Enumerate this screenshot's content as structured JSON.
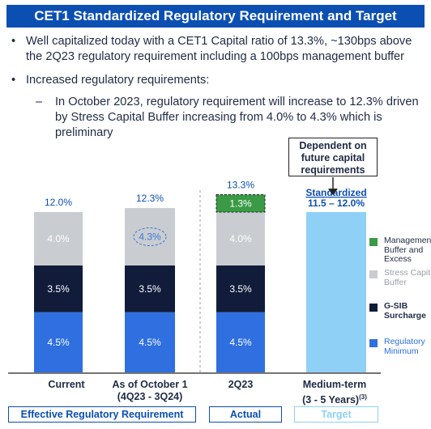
{
  "title": "CET1 Standardized Regulatory Requirement and Target",
  "bullets": {
    "b1": "Well capitalized today with a CET1 Capital ratio of 13.3%, ~130bps above the 2Q23 regulatory requirement including a 100bps management buffer",
    "b2": "Increased regulatory requirements:",
    "sub1": "In October 2023, regulatory requirement will increase to 12.3% driven by Stress Capital Buffer increasing from 4.0% to 4.3% which is preliminary"
  },
  "callout": "Dependent on future capital requirements",
  "colors": {
    "regulatory_minimum": "#2f6fe0",
    "gsib": "#101c3a",
    "stress_capital_buffer": "#c9ccd0",
    "management_buffer": "#3a9a45",
    "medium_term": "#8fd0f7",
    "label_blue": "#0b4fb3"
  },
  "chart_data": {
    "type": "bar",
    "stacked": true,
    "categories": [
      "Current",
      "As of October 1 (4Q23 - 3Q24)",
      "2Q23",
      "Medium-term (3 - 5 Years)(3)"
    ],
    "category_labels": [
      {
        "l1": "Current",
        "l2": ""
      },
      {
        "l1": "As of October 1",
        "l2": "(4Q23 - 3Q24)"
      },
      {
        "l1": "2Q23",
        "l2": ""
      },
      {
        "l1": "Medium-term",
        "l2": "(3 - 5 Years)",
        "sup": "(3)"
      }
    ],
    "series": [
      {
        "name": "Regulatory Minimum",
        "values": [
          4.5,
          4.5,
          4.5,
          null
        ],
        "labels": [
          "4.5%",
          "4.5%",
          "4.5%",
          ""
        ]
      },
      {
        "name": "G-SIB Surcharge",
        "values": [
          3.5,
          3.5,
          3.5,
          null
        ],
        "labels": [
          "3.5%",
          "3.5%",
          "3.5%",
          ""
        ]
      },
      {
        "name": "Stress Capital Buffer",
        "values": [
          4.0,
          4.3,
          4.0,
          null
        ],
        "labels": [
          "4.0%",
          "4.3%",
          "4.0%",
          ""
        ]
      },
      {
        "name": "Management Buffer and Excess",
        "values": [
          null,
          null,
          1.3,
          null
        ],
        "labels": [
          "",
          "",
          "1.3%",
          ""
        ]
      }
    ],
    "totals": [
      "12.0%",
      "12.3%",
      "13.3%",
      ""
    ],
    "medium_term": {
      "label": "Standardized",
      "range_label": "11.5 – 12.0%",
      "low": 11.5,
      "high": 12.0
    },
    "legend": [
      {
        "name": "Management Buffer and Excess",
        "lines": [
          "Management",
          "Buffer and",
          "Excess"
        ],
        "color_key": "management_buffer"
      },
      {
        "name": "Stress Capital Buffer",
        "lines": [
          "Stress Capital",
          "Buffer"
        ],
        "color_key": "stress_capital_buffer"
      },
      {
        "name": "G-SIB Surcharge",
        "lines": [
          "G-SIB",
          "Surcharge"
        ],
        "color_key": "gsib"
      },
      {
        "name": "Regulatory Minimum",
        "lines": [
          "Regulatory",
          "Minimum"
        ],
        "color_key": "regulatory_minimum"
      }
    ],
    "groups": [
      "Effective Regulatory Requirement",
      "Actual",
      "Target"
    ],
    "legend_position": "right"
  }
}
